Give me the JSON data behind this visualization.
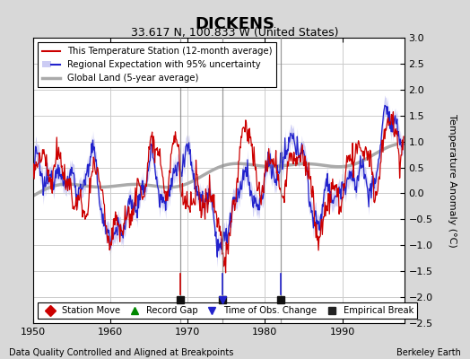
{
  "title": "DICKENS",
  "subtitle": "33.617 N, 100.833 W (United States)",
  "ylabel": "Temperature Anomaly (°C)",
  "footer_left": "Data Quality Controlled and Aligned at Breakpoints",
  "footer_right": "Berkeley Earth",
  "xlim": [
    1950,
    1998
  ],
  "ylim": [
    -2.5,
    3.0
  ],
  "yticks": [
    -2.5,
    -2,
    -1.5,
    -1,
    -0.5,
    0,
    0.5,
    1,
    1.5,
    2,
    2.5,
    3
  ],
  "xticks": [
    1950,
    1960,
    1970,
    1980,
    1990
  ],
  "background_color": "#d8d8d8",
  "plot_bg_color": "#ffffff",
  "grid_color": "#cccccc",
  "red_line_color": "#cc0000",
  "blue_line_color": "#2222cc",
  "blue_band_color": "#aaaaee",
  "gray_line_color": "#aaaaaa",
  "break_line_color": "#888888",
  "empirical_breaks": [
    1969.0,
    1974.5,
    1982.0
  ],
  "blue_obs_change_year": 1974.5,
  "legend_line": [
    {
      "label": "This Temperature Station (12-month average)",
      "color": "#cc0000",
      "lw": 1.5
    },
    {
      "label": "Regional Expectation with 95% uncertainty",
      "color": "#2222cc",
      "lw": 1.5
    },
    {
      "label": "Global Land (5-year average)",
      "color": "#aaaaaa",
      "lw": 2.5
    }
  ],
  "marker_legend": [
    {
      "label": "Station Move",
      "marker": "D",
      "color": "#cc0000"
    },
    {
      "label": "Record Gap",
      "marker": "^",
      "color": "#008800"
    },
    {
      "label": "Time of Obs. Change",
      "marker": "v",
      "color": "#2222cc"
    },
    {
      "label": "Empirical Break",
      "marker": "s",
      "color": "#222222"
    }
  ]
}
